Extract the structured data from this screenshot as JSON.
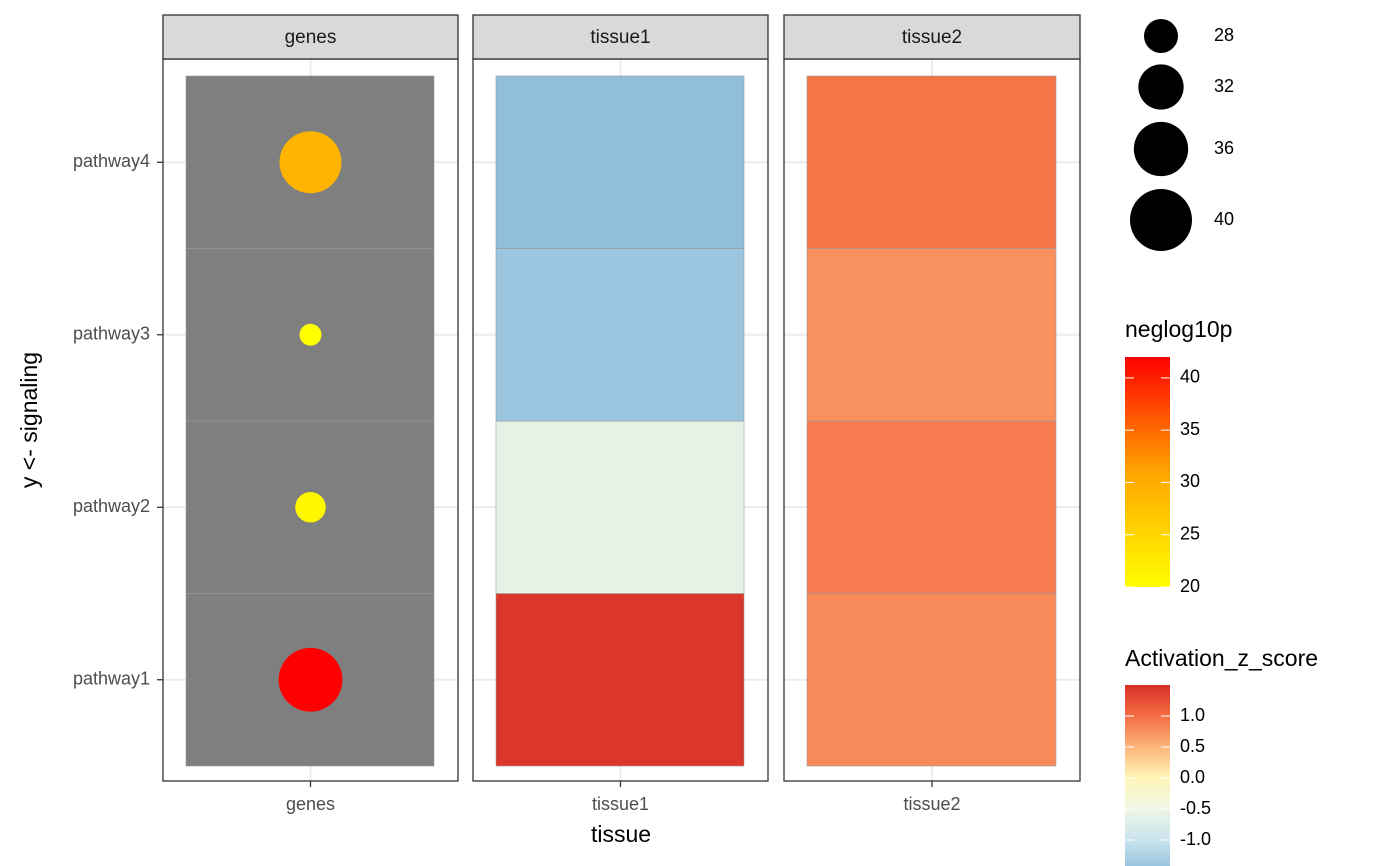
{
  "chart_data": {
    "type": "facet-heatmap",
    "y_label": "y <- signaling",
    "x_label": "tissue",
    "categories": [
      "pathway1",
      "pathway2",
      "pathway3",
      "pathway4"
    ],
    "dots": {
      "name": "genes",
      "tile_color": "#7f7f7f",
      "values": [
        42,
        21,
        20,
        29
      ],
      "sizes": [
        41,
        27,
        25,
        40
      ]
    },
    "series": [
      {
        "name": "tissue1",
        "values": [
          1.45,
          -0.6,
          -1.4,
          -1.5
        ]
      },
      {
        "name": "tissue2",
        "values": [
          0.8,
          0.9,
          0.75,
          0.95
        ]
      }
    ],
    "size_legend": {
      "ticks": [
        28,
        32,
        36,
        40
      ]
    },
    "color_legend": {
      "title": "neglog10p",
      "lim": [
        20,
        42
      ],
      "ticks": [
        20,
        25,
        30,
        35,
        40
      ],
      "colors": [
        "#ffff00",
        "#ffa500",
        "#ff0000"
      ]
    },
    "fill_legend": {
      "title": "Activation_z_score",
      "lim": [
        -1.5,
        1.5
      ],
      "ticks": [
        {
          "value": 1,
          "label": "1.0"
        },
        {
          "value": 0.5,
          "label": "0.5"
        },
        {
          "value": 0,
          "label": "0.0"
        },
        -0.5,
        {
          "value": -1,
          "label": "-1.0"
        }
      ],
      "colors": [
        "#91bfdb",
        "#c9e3ee",
        "#eef6e4",
        "#fff5b8",
        "#fdb57a",
        "#f46d43",
        "#d73027"
      ]
    },
    "grid": true
  }
}
